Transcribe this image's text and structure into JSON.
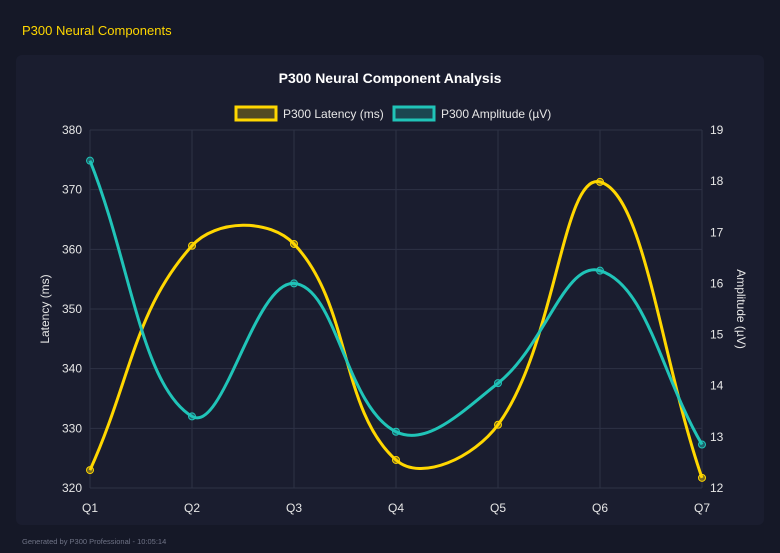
{
  "app": {
    "title": "P300 Neural Components",
    "footer": "Generated by P300 Professional - 10:05:14"
  },
  "colors": {
    "latency": "#ffd700",
    "amplitude": "#20c4b8",
    "grid": "#2e3246",
    "text": "#e6e6e6"
  },
  "chart_data": {
    "type": "line",
    "title": "P300 Neural Component Analysis",
    "categories": [
      "Q1",
      "Q2",
      "Q3",
      "Q4",
      "Q5",
      "Q6",
      "Q7"
    ],
    "y_left": {
      "label": "Latency (ms)",
      "range": [
        320,
        380
      ],
      "ticks": [
        320,
        330,
        340,
        350,
        360,
        370,
        380
      ]
    },
    "y_right": {
      "label": "Amplitude (µV)",
      "range": [
        12,
        19
      ],
      "ticks": [
        12,
        13,
        14,
        15,
        16,
        17,
        18,
        19
      ]
    },
    "grid": true,
    "legend_placement": "top",
    "series": [
      {
        "name": "P300 Latency (ms)",
        "axis": "left",
        "color": "#ffd700",
        "values": [
          323.0,
          360.6,
          360.9,
          324.7,
          330.6,
          371.3,
          321.7
        ]
      },
      {
        "name": "P300 Amplitude (µV)",
        "axis": "right",
        "color": "#20c4b8",
        "values": [
          18.4,
          13.4,
          16.0,
          13.1,
          14.05,
          16.25,
          12.85
        ]
      }
    ]
  }
}
